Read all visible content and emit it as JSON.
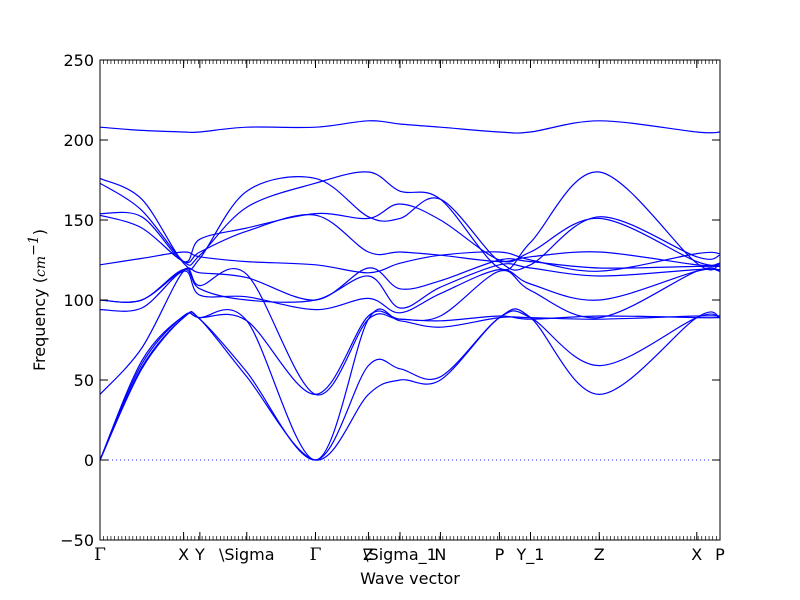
{
  "chart_data": {
    "type": "line",
    "xlabel": "Wave vector",
    "ylabel": {
      "text": "Frequency (",
      "unit_base": "cm",
      "unit_exp": "−1",
      "close": ")"
    },
    "ylim": [
      -50,
      250
    ],
    "yticks": [
      -50,
      0,
      50,
      100,
      150,
      200,
      250
    ],
    "grid": false,
    "zero_line": {
      "y": 0,
      "style": "dotted"
    },
    "line_color": "#0000ff",
    "xlim": [
      0,
      13.35
    ],
    "qpoint_ticks": [
      {
        "x": 0.0,
        "label": "Γ"
      },
      {
        "x": 1.8,
        "label": "X"
      },
      {
        "x": 2.15,
        "label": "Y"
      },
      {
        "x": 3.16,
        "label": "\\Sigma"
      },
      {
        "x": 4.64,
        "label": "Γ"
      },
      {
        "x": 5.78,
        "label": "Z"
      },
      {
        "x": 6.46,
        "label": "\\Sigma_1"
      },
      {
        "x": 7.33,
        "label": "N"
      },
      {
        "x": 8.6,
        "label": "P"
      },
      {
        "x": 9.27,
        "label": "Y_1"
      },
      {
        "x": 10.75,
        "label": "Z"
      },
      {
        "x": 12.85,
        "label": "X"
      },
      {
        "x": 13.35,
        "label": "P"
      }
    ],
    "x": [
      0,
      0.9,
      1.8,
      2.15,
      3.16,
      4.64,
      5.78,
      6.46,
      7.33,
      8.6,
      9.27,
      10.75,
      12.85,
      13.35
    ],
    "series": [
      {
        "values": [
          208,
          206,
          205,
          205,
          208,
          208,
          212,
          210,
          208,
          205,
          205,
          212,
          205,
          205
        ]
      },
      {
        "values": [
          176,
          163,
          123,
          126,
          168,
          176,
          152,
          151,
          163,
          124,
          122,
          152,
          127,
          128
        ]
      },
      {
        "values": [
          173,
          156,
          124,
          128,
          158,
          173,
          180,
          168,
          163,
          120,
          136,
          180,
          123,
          123
        ]
      },
      {
        "values": [
          154,
          152,
          124,
          138,
          145,
          154,
          151,
          160,
          150,
          125,
          130,
          151,
          124,
          123
        ]
      },
      {
        "values": [
          153,
          145,
          124,
          130,
          143,
          153,
          130,
          130,
          128,
          124,
          127,
          130,
          122,
          122
        ]
      },
      {
        "values": [
          122,
          126,
          130,
          127,
          124,
          122,
          117,
          123,
          128,
          130,
          125,
          118,
          129,
          129
        ]
      },
      {
        "values": [
          100,
          100,
          119,
          117,
          114,
          100,
          120,
          107,
          112,
          125,
          124,
          120,
          121,
          121
        ]
      },
      {
        "values": [
          100,
          100,
          119,
          107,
          100,
          100,
          115,
          95,
          108,
          122,
          120,
          115,
          119,
          119
        ]
      },
      {
        "values": [
          94,
          95,
          118,
          103,
          102,
          94,
          101,
          92,
          104,
          119,
          110,
          100,
          118,
          118
        ]
      },
      {
        "values": [
          41,
          70,
          118,
          109,
          116,
          41,
          88,
          88,
          90,
          118,
          106,
          89,
          118,
          118
        ]
      },
      {
        "values": [
          0,
          62,
          90,
          89,
          87,
          41,
          90,
          88,
          87,
          90,
          88,
          90,
          89,
          89
        ]
      },
      {
        "values": [
          0,
          60,
          90,
          89,
          87,
          0,
          88,
          87,
          83,
          89,
          89,
          88,
          90,
          90
        ]
      },
      {
        "values": [
          0,
          58,
          89,
          88,
          55,
          0,
          59,
          57,
          52,
          89,
          89,
          59,
          89,
          89
        ]
      },
      {
        "values": [
          0,
          57,
          89,
          88,
          52,
          0,
          41,
          50,
          50,
          89,
          89,
          41,
          89,
          89
        ]
      }
    ]
  }
}
